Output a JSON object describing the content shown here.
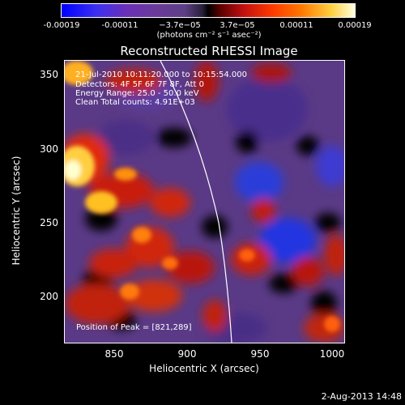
{
  "colorbar": {
    "ticks": [
      "-0.00019",
      "-0.00011",
      "−3.7e−05",
      "3.7e−05",
      "0.00011",
      "0.00019"
    ],
    "units": "(photons cm⁻² s⁻¹ asec⁻²)"
  },
  "plot": {
    "title": "Reconstructed RHESSI Image",
    "xlabel": "Heliocentric X (arcsec)",
    "ylabel": "Heliocentric Y (arcsec)",
    "x_ticks": [
      "850",
      "900",
      "950",
      "1000"
    ],
    "y_ticks": [
      "350",
      "300",
      "250",
      "200"
    ],
    "info_lines": [
      "21-Jul-2010 10:11:20.000 to 10:15:54.000",
      "Detectors: 4F 5F 6F 7F 8F, Att 0",
      "Energy Range: 25.0 - 50.0 keV",
      "Clean    Total counts: 4.91E+03"
    ],
    "peak_text": "Position of Peak = [821,289]"
  },
  "footer": {
    "date": "2-Aug-2013 14:48"
  },
  "chart_data": {
    "type": "heatmap",
    "title": "Reconstructed RHESSI Image",
    "xlabel": "Heliocentric X (arcsec)",
    "ylabel": "Heliocentric Y (arcsec)",
    "xlim": [
      812,
      1007
    ],
    "ylim": [
      167,
      364
    ],
    "colorbar_range": [
      -0.00019,
      0.00019
    ]
  }
}
